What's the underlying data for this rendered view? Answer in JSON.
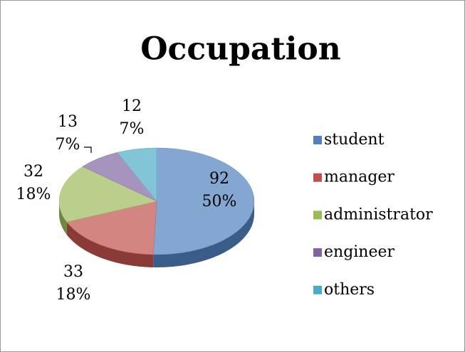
{
  "chart_data": {
    "type": "pie",
    "title": "Occupation",
    "categories": [
      "student",
      "manager",
      "administrator",
      "engineer",
      "others"
    ],
    "values": [
      92,
      33,
      32,
      13,
      12
    ],
    "percent_labels": [
      "50%",
      "18%",
      "18%",
      "7%",
      "7%"
    ],
    "colors": [
      "#4f81bd",
      "#c0504d",
      "#9bbb59",
      "#8064a2",
      "#4bacc6"
    ],
    "legend": "right"
  }
}
